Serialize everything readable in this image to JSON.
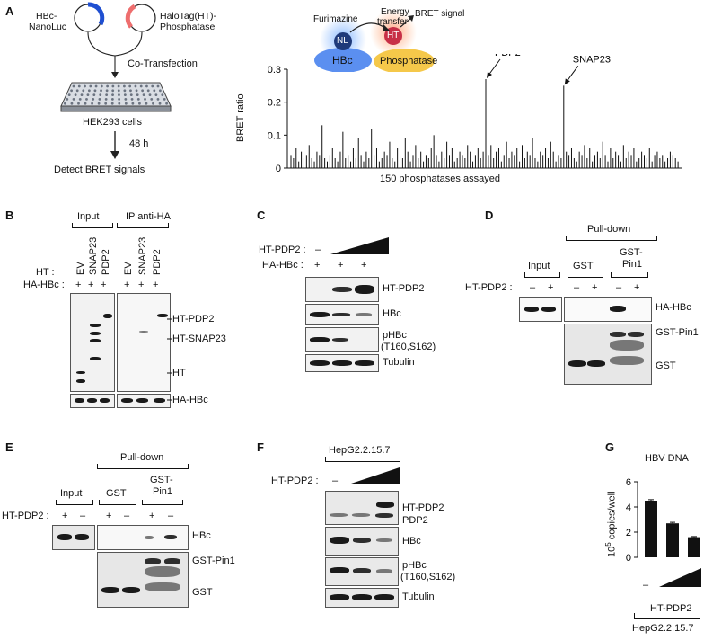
{
  "panels": [
    "A",
    "B",
    "C",
    "D",
    "E",
    "F",
    "G"
  ],
  "panelA": {
    "plasmid1": "HBc-\nNanoLuc",
    "plasmid1_line1": "HBc-",
    "plasmid1_line2": "NanoLuc",
    "plasmid2_line1": "HaloTag(HT)-",
    "plasmid2_line2": "Phosphatase",
    "cotransfection": "Co-Transfection",
    "cells": "HEK293 cells",
    "time": "48 h",
    "detect": "Detect BRET signals",
    "furimazine": "Furimazine",
    "energy_line1": "Energy",
    "energy_line2": "transfer",
    "bret_signal": "BRET signal",
    "nl": "NL",
    "ht": "HT",
    "hbc": "HBc",
    "phosphatase": "Phosphatase",
    "ann_pdp2": "PDP2",
    "ann_snap23": "SNAP23"
  },
  "chart_data": {
    "type": "bar",
    "ylabel": "BRET ratio",
    "xlabel": "150 phosphatases assayed",
    "ylim": [
      0,
      0.3
    ],
    "yticks": [
      "0",
      "0.1",
      "0.2",
      "0.3"
    ],
    "values": [
      0.04,
      0.03,
      0.06,
      0.02,
      0.05,
      0.03,
      0.04,
      0.07,
      0.03,
      0.02,
      0.05,
      0.04,
      0.13,
      0.03,
      0.02,
      0.04,
      0.06,
      0.03,
      0.02,
      0.05,
      0.11,
      0.03,
      0.04,
      0.02,
      0.06,
      0.03,
      0.09,
      0.04,
      0.02,
      0.05,
      0.03,
      0.12,
      0.04,
      0.06,
      0.02,
      0.03,
      0.05,
      0.04,
      0.08,
      0.03,
      0.02,
      0.06,
      0.04,
      0.03,
      0.09,
      0.05,
      0.02,
      0.04,
      0.07,
      0.03,
      0.05,
      0.02,
      0.04,
      0.03,
      0.06,
      0.1,
      0.04,
      0.02,
      0.05,
      0.03,
      0.08,
      0.04,
      0.06,
      0.02,
      0.03,
      0.05,
      0.04,
      0.03,
      0.07,
      0.05,
      0.02,
      0.04,
      0.06,
      0.03,
      0.05,
      0.27,
      0.04,
      0.07,
      0.03,
      0.05,
      0.06,
      0.02,
      0.04,
      0.08,
      0.03,
      0.05,
      0.04,
      0.06,
      0.02,
      0.07,
      0.03,
      0.05,
      0.04,
      0.09,
      0.03,
      0.02,
      0.05,
      0.04,
      0.06,
      0.03,
      0.08,
      0.05,
      0.02,
      0.04,
      0.03,
      0.25,
      0.05,
      0.04,
      0.06,
      0.03,
      0.02,
      0.05,
      0.04,
      0.07,
      0.03,
      0.06,
      0.02,
      0.04,
      0.05,
      0.03,
      0.08,
      0.04,
      0.02,
      0.06,
      0.03,
      0.05,
      0.04,
      0.02,
      0.07,
      0.03,
      0.05,
      0.04,
      0.06,
      0.02,
      0.03,
      0.05,
      0.04,
      0.03,
      0.06,
      0.02,
      0.04,
      0.05,
      0.03,
      0.04,
      0.02,
      0.03,
      0.05,
      0.04,
      0.03,
      0.02
    ],
    "annotations": [
      {
        "label": "PDP2",
        "index": 75
      },
      {
        "label": "SNAP23",
        "index": 105
      }
    ]
  },
  "panelB": {
    "input": "Input",
    "ip": "IP anti-HA",
    "ht_row": "HT :",
    "hahbc_row": "HA-HBc :",
    "lanes": [
      "EV",
      "SNAP23",
      "PDP2",
      "EV",
      "SNAP23",
      "PDP2"
    ],
    "plus": "+",
    "label_htpdp2": "HT-PDP2",
    "label_htsnap23": "HT-SNAP23",
    "label_ht": "HT",
    "label_hahbc": "HA-HBc"
  },
  "panelC": {
    "htpdp2_row": "HT-PDP2 :",
    "hahbc_row": "HA-HBc :",
    "minus": "–",
    "plus": "+",
    "label_htpdp2": "HT-PDP2",
    "label_hbc": "HBc",
    "label_phbc1": "pHBc",
    "label_phbc2": "(T160,S162)",
    "label_tubulin": "Tubulin"
  },
  "panelD": {
    "pulldown": "Pull-down",
    "input": "Input",
    "gst": "GST",
    "gstpin1_line1": "GST-",
    "gstpin1_line2": "Pin1",
    "row": "HT-PDP2 :",
    "signs": [
      "–",
      "+",
      "–",
      "+",
      "–",
      "+"
    ],
    "label_hahbc": "HA-HBc",
    "label_gstpin1": "GST-Pin1",
    "label_gst": "GST"
  },
  "panelE": {
    "pulldown": "Pull-down",
    "input": "Input",
    "gst": "GST",
    "gstpin1_line1": "GST-",
    "gstpin1_line2": "Pin1",
    "row": "HT-PDP2 :",
    "signs": [
      "+",
      "–",
      "+",
      "–",
      "+",
      "–"
    ],
    "label_hbc": "HBc",
    "label_gstpin1": "GST-Pin1",
    "label_gst": "GST"
  },
  "panelF": {
    "cell": "HepG2.2.15.7",
    "row": "HT-PDP2 :",
    "minus": "–",
    "label_htpdp2": "HT-PDP2",
    "label_pdp2": "PDP2",
    "label_hbc": "HBc",
    "label_phbc1": "pHBc",
    "label_phbc2": "(T160,S162)",
    "label_tubulin": "Tubulin"
  },
  "panelG": {
    "title": "HBV DNA",
    "ylabel_base": "10",
    "ylabel_exp": "5",
    "ylabel_rest": " copies/well",
    "yticks": [
      "0",
      "2",
      "4",
      "6"
    ],
    "minus": "–",
    "treatment": "HT-PDP2",
    "cell": "HepG2.2.15.7",
    "chart_data": {
      "type": "bar",
      "ylim": [
        0,
        6
      ],
      "values": [
        4.5,
        2.7,
        1.6
      ],
      "errors": [
        0.08,
        0.08,
        0.05
      ]
    }
  }
}
